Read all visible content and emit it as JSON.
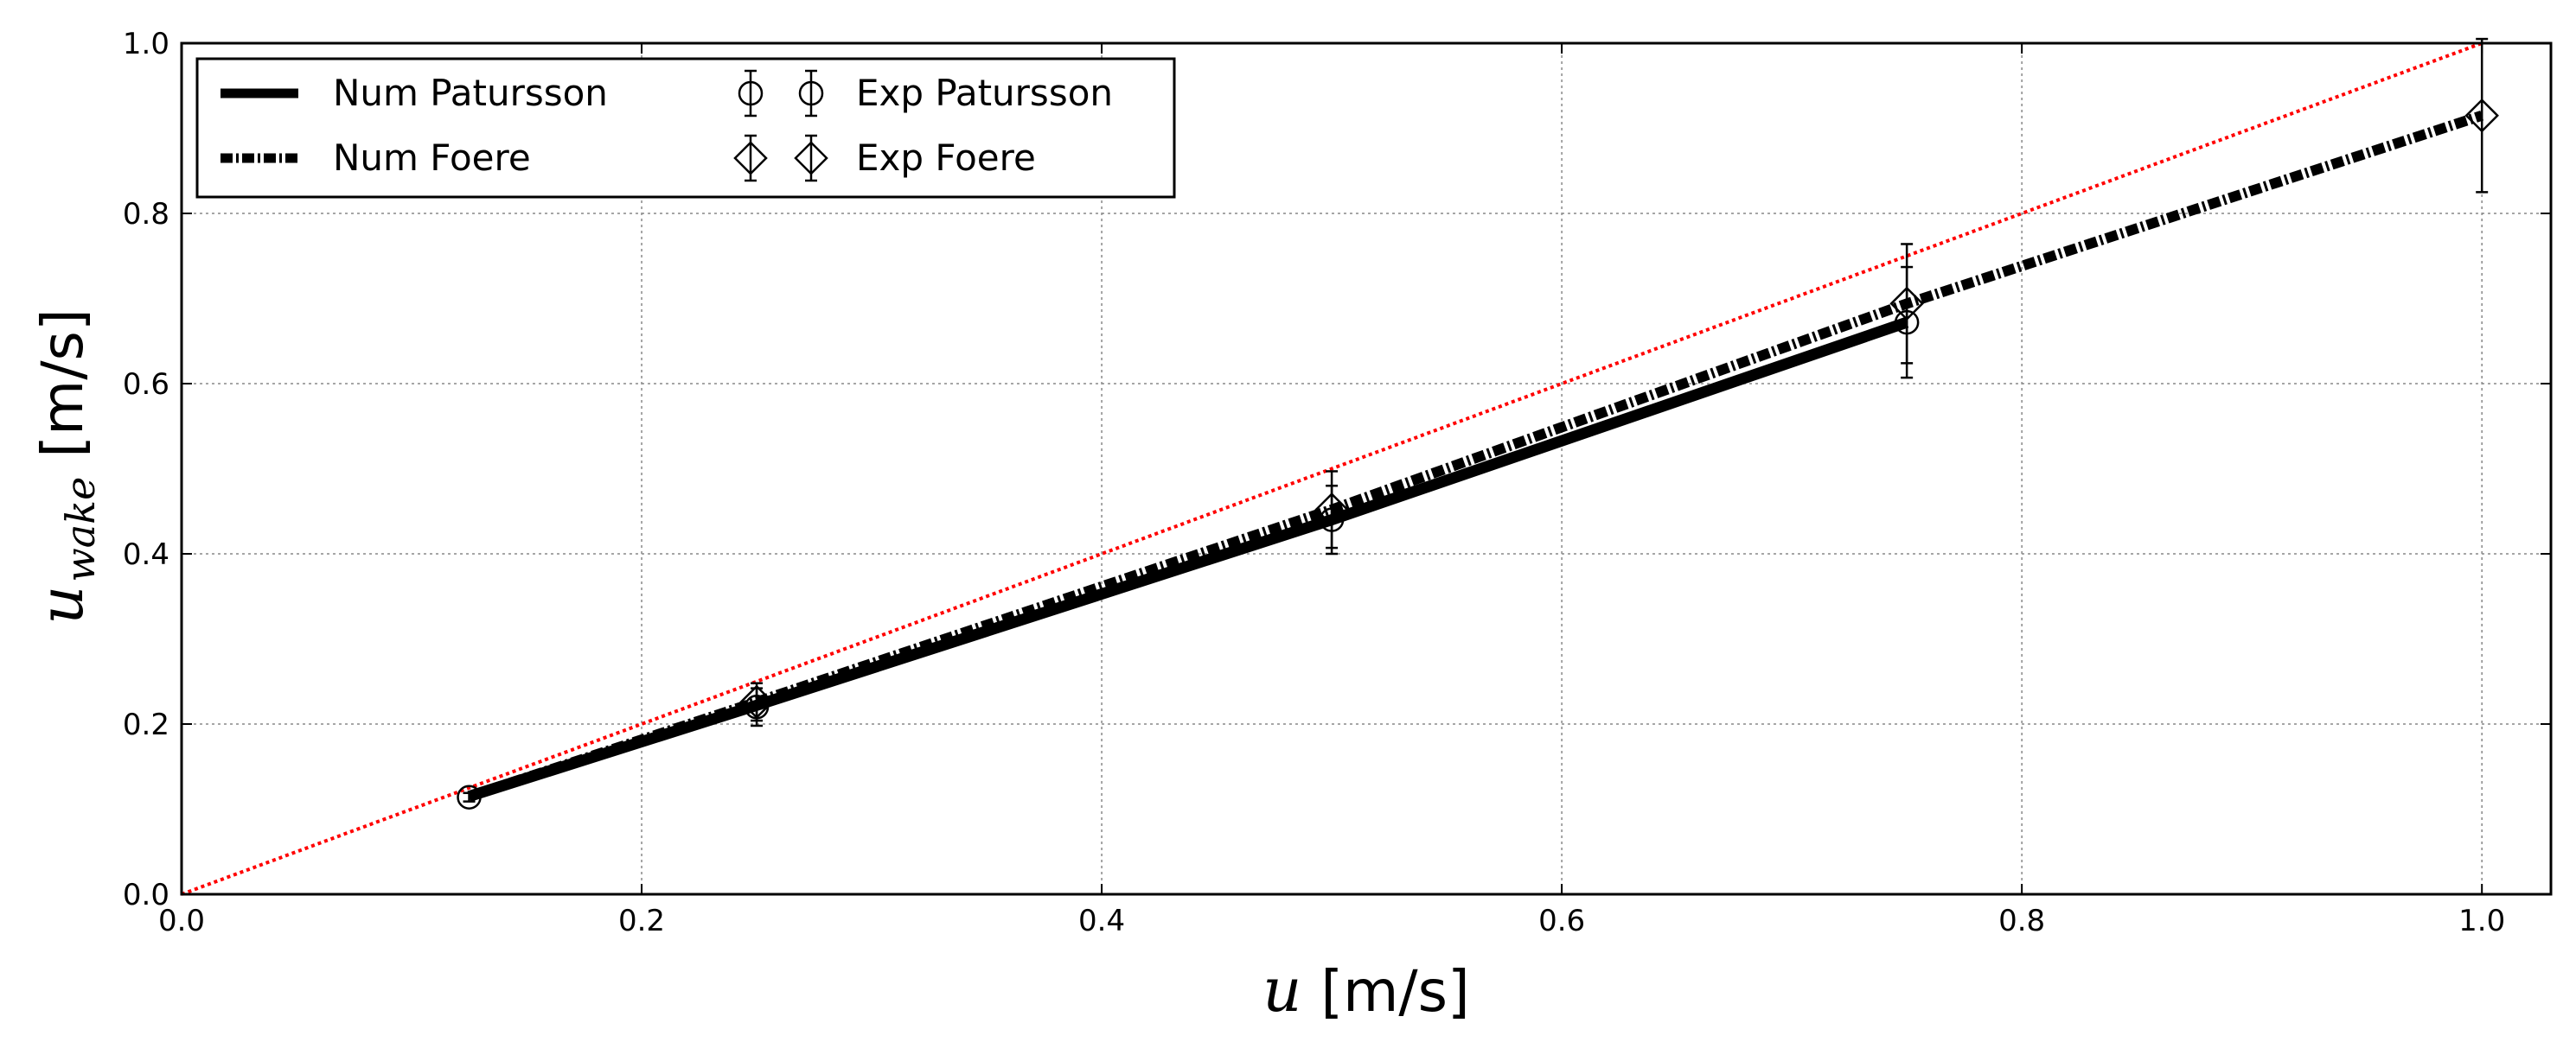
{
  "chart_data": {
    "type": "line",
    "title": "",
    "xlabel": {
      "var": "u",
      "sub": "",
      "unit": "[m/s]"
    },
    "ylabel": {
      "var": "u",
      "sub": "wake",
      "unit": "[m/s]"
    },
    "xlim": [
      0.0,
      1.03
    ],
    "ylim": [
      0.0,
      1.0
    ],
    "xticks": [
      "0.0",
      "0.2",
      "0.4",
      "0.6",
      "0.8",
      "1.0"
    ],
    "yticks": [
      "0.0",
      "0.2",
      "0.4",
      "0.6",
      "0.8",
      "1.0"
    ],
    "grid": true,
    "legend_position": "top-left",
    "series": [
      {
        "name": "Num Patursson",
        "kind": "line",
        "style": "solid",
        "color": "#000000",
        "x": [
          0.125,
          0.25,
          0.5,
          0.75
        ],
        "y": [
          0.115,
          0.222,
          0.44,
          0.672
        ]
      },
      {
        "name": "Num Foere",
        "kind": "line",
        "style": "dashdot",
        "color": "#000000",
        "x": [
          0.125,
          0.25,
          0.5,
          0.75,
          1.0
        ],
        "y": [
          0.115,
          0.226,
          0.452,
          0.694,
          0.915
        ]
      },
      {
        "name": "Exp Patursson",
        "kind": "errorbar",
        "marker": "circle",
        "color": "#000000",
        "x": [
          0.125,
          0.25,
          0.5,
          0.75
        ],
        "y": [
          0.114,
          0.22,
          0.44,
          0.672
        ],
        "yerr": [
          0.005,
          0.022,
          0.04,
          0.065
        ]
      },
      {
        "name": "Exp Foere",
        "kind": "errorbar",
        "marker": "diamond",
        "color": "#000000",
        "x": [
          0.25,
          0.5,
          0.75,
          1.0
        ],
        "y": [
          0.226,
          0.452,
          0.694,
          0.915
        ],
        "yerr": [
          0.022,
          0.045,
          0.07,
          0.09
        ]
      },
      {
        "kind": "reference",
        "style": "dotted",
        "color": "#ff0000",
        "x": [
          0.0,
          1.0
        ],
        "y": [
          0.0,
          1.0
        ]
      }
    ]
  }
}
